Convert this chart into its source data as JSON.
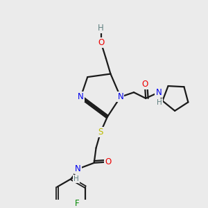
{
  "bg_color": "#ebebeb",
  "atom_colors": {
    "C": "#000000",
    "N": "#0000ee",
    "O": "#ee0000",
    "S": "#bbbb00",
    "F": "#008800",
    "H": "#608080"
  },
  "bond_color": "#1a1a1a",
  "bond_width": 1.6,
  "font_size_atom": 8.5
}
